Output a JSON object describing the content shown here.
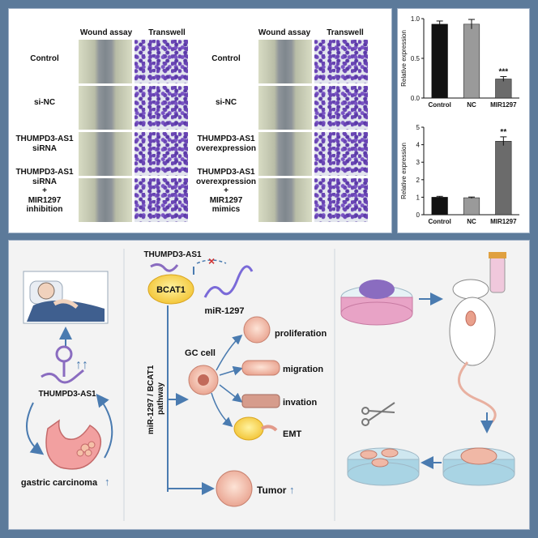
{
  "left_panel": {
    "col_wound": "Wound assay",
    "col_transwell": "Transwell",
    "rows": [
      "Control",
      "si-NC",
      "THUMPD3-AS1\nsiRNA",
      "THUMPD3-AS1\nsiRNA\n+\nMIR1297\ninhibition"
    ]
  },
  "right_panel": {
    "col_wound": "Wound assay",
    "col_transwell": "Transwell",
    "rows": [
      "Control",
      "si-NC",
      "THUMPD3-AS1\noverexpression",
      "THUMPD3-AS1\noverexpression\n+\nMIR1297\nmimics"
    ]
  },
  "colors": {
    "background": "#5c7a9a",
    "purple": "#8a6cc0",
    "blue_arrow": "#4a7bb0",
    "bar_black": "#111111",
    "bar_grey": "#9a9a9a",
    "bar_darkgrey": "#6b6b6b"
  },
  "chart_data": [
    {
      "type": "bar",
      "categories": [
        "Control",
        "NC",
        "MIR1297"
      ],
      "values": [
        0.93,
        0.93,
        0.24
      ],
      "errors": [
        0.04,
        0.06,
        0.03
      ],
      "ylabel": "Relative expression",
      "ylim": [
        0,
        1.0
      ],
      "yticks": [
        0,
        0.5,
        1.0
      ],
      "annotations": [
        "",
        "",
        "***"
      ]
    },
    {
      "type": "bar",
      "categories": [
        "Control",
        "NC",
        "MIR1297"
      ],
      "values": [
        1.0,
        0.97,
        4.2
      ],
      "errors": [
        0.05,
        0.04,
        0.25
      ],
      "ylabel": "Relative expression",
      "ylim": [
        0,
        5
      ],
      "yticks": [
        0,
        1,
        2,
        3,
        4,
        5
      ],
      "annotations": [
        "",
        "",
        "**"
      ]
    }
  ],
  "diagram": {
    "thumpd3_top": "THUMPD3-AS1",
    "bcat1": "BCAT1",
    "mir": "miR-1297",
    "pathway": "miR-1297 / BCAT1\npathway",
    "gc_cell": "GC cell",
    "proliferation": "proliferation",
    "migration": "migration",
    "invasion": "invation",
    "emt": "EMT",
    "tumor": "Tumor",
    "thumpd3_left": "THUMPD3-AS1",
    "gastric": "gastric carcinoma",
    "up_arrows": "↑↑",
    "up_arrow": "↑"
  }
}
